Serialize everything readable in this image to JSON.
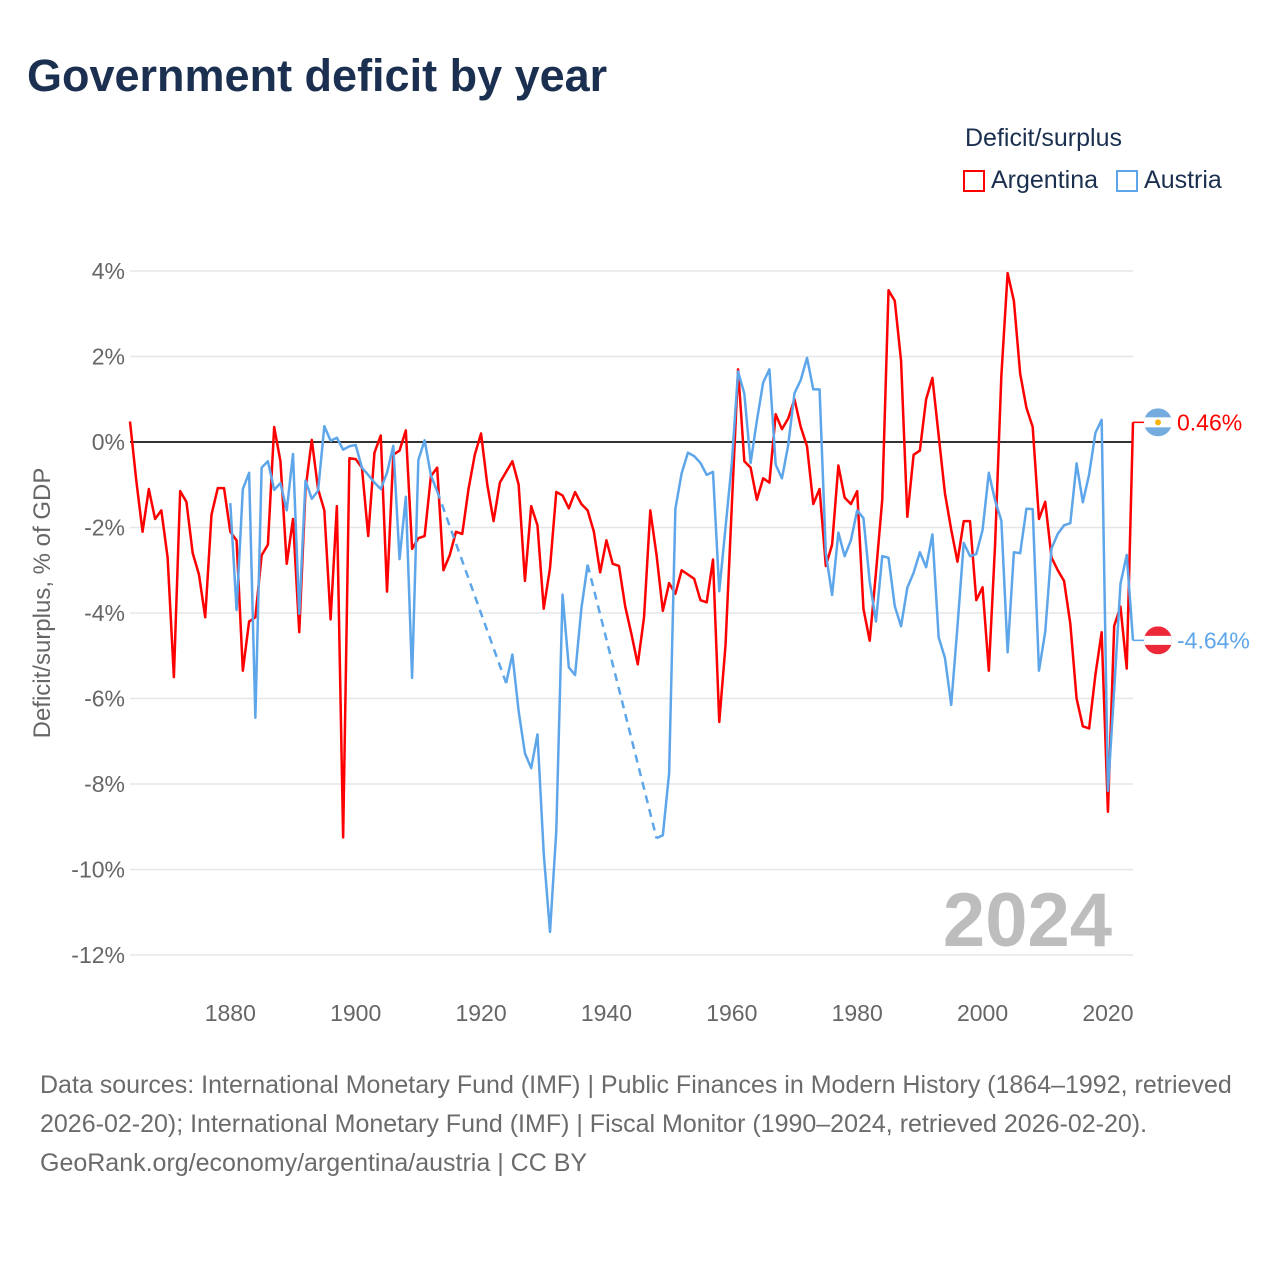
{
  "title": "Government deficit by year",
  "legend": {
    "title": "Deficit/surplus",
    "items": [
      {
        "label": "Argentina",
        "color": "#ff0000"
      },
      {
        "label": "Austria",
        "color": "#5ea6ea"
      }
    ]
  },
  "footer": {
    "sources": "Data sources: International Monetary Fund (IMF) | Public Finances in Modern History (1864–1992, retrieved 2026-02-20); International Monetary Fund (IMF) | Fiscal Monitor (1990–2024, retrieved 2026-02-20).",
    "link": "GeoRank.org/economy/argentina/austria | CC BY"
  },
  "chart_data": {
    "type": "line",
    "title": "Government deficit by year",
    "xlabel": "",
    "ylabel": "Deficit/surplus, % of GDP",
    "xlim": [
      1864,
      2024
    ],
    "ylim": [
      -12,
      4
    ],
    "yticks": [
      4,
      2,
      0,
      -2,
      -4,
      -6,
      -8,
      -10,
      -12
    ],
    "ytick_labels": [
      "4%",
      "2%",
      "0%",
      "-2%",
      "-4%",
      "-6%",
      "-8%",
      "-10%",
      "-12%"
    ],
    "xticks": [
      1880,
      1900,
      1920,
      1940,
      1960,
      1980,
      2000,
      2020
    ],
    "xtick_labels": [
      "1880",
      "1900",
      "1920",
      "1940",
      "1960",
      "1980",
      "2000",
      "2020"
    ],
    "grid": true,
    "legend_position": "top-right",
    "year_watermark": "2024",
    "series": [
      {
        "name": "Argentina",
        "start_year": 1864,
        "end_label": "0.46%",
        "flag": "argentina-flag",
        "values": [
          0.48,
          -0.9,
          -2.1,
          -1.1,
          -1.8,
          -1.6,
          -2.7,
          -5.5,
          -1.15,
          -1.4,
          -2.6,
          -3.1,
          -4.1,
          -1.7,
          -1.08,
          -1.08,
          -2.1,
          -2.3,
          -5.35,
          -4.2,
          -4.1,
          -2.65,
          -2.4,
          0.35,
          -0.45,
          -2.85,
          -1.8,
          -4.45,
          -1.1,
          0.05,
          -1.1,
          -1.6,
          -4.15,
          -1.5,
          -9.25,
          -0.38,
          -0.4,
          -0.6,
          -2.2,
          -0.25,
          0.15,
          -3.5,
          -0.3,
          -0.2,
          0.27,
          -2.5,
          -2.25,
          -2.2,
          -0.8,
          -0.6,
          -3.0,
          -2.65,
          -2.1,
          -2.15,
          -1.1,
          -0.3,
          0.2,
          -1.0,
          -1.85,
          -0.95,
          -0.7,
          -0.45,
          -1.0,
          -3.25,
          -1.5,
          -1.95,
          -3.9,
          -2.95,
          -1.17,
          -1.25,
          -1.55,
          -1.17,
          -1.45,
          -1.6,
          -2.1,
          -3.05,
          -2.3,
          -2.85,
          -2.9,
          -3.85,
          -4.5,
          -5.2,
          -4.1,
          -1.6,
          -2.65,
          -3.95,
          -3.3,
          -3.55,
          -3.0,
          -3.1,
          -3.2,
          -3.7,
          -3.75,
          -2.75,
          -6.55,
          -4.75,
          -1.5,
          1.7,
          -0.45,
          -0.6,
          -1.35,
          -0.85,
          -0.95,
          0.65,
          0.3,
          0.55,
          1.0,
          0.35,
          -0.1,
          -1.45,
          -1.1,
          -2.9,
          -2.4,
          -0.55,
          -1.3,
          -1.45,
          -1.15,
          -3.9,
          -4.65,
          -3.05,
          -1.35,
          3.55,
          3.3,
          1.9,
          -1.75,
          -0.3,
          -0.2,
          1.0,
          1.5,
          0.15,
          -1.2,
          -2.05,
          -2.8,
          -1.85,
          -1.85,
          -3.7,
          -3.4,
          -5.35,
          -2.4,
          1.55,
          3.95,
          3.3,
          1.6,
          0.8,
          0.35,
          -1.8,
          -1.4,
          -2.7,
          -3.0,
          -3.25,
          -4.25,
          -6.0,
          -6.65,
          -6.7,
          -5.45,
          -4.45,
          -8.65,
          -4.3,
          -3.85,
          -5.3,
          0.46
        ]
      },
      {
        "name": "Austria",
        "start_year": 1880,
        "end_label": "-4.64%",
        "flag": "austria-flag",
        "values": [
          -1.43,
          -3.93,
          -1.1,
          -0.72,
          -6.45,
          -0.6,
          -0.45,
          -1.12,
          -0.96,
          -1.6,
          -0.28,
          -4.02,
          -0.9,
          -1.33,
          -1.14,
          0.37,
          0.03,
          0.1,
          -0.18,
          -0.1,
          -0.07,
          -0.6,
          -0.77,
          -0.95,
          -1.1,
          -0.72,
          -0.09,
          -2.74,
          -1.28,
          -5.52,
          -0.42,
          0.04,
          -0.78,
          -1.15,
          null,
          null,
          null,
          null,
          null,
          null,
          null,
          null,
          null,
          null,
          -5.64,
          -4.97,
          -6.3,
          -7.28,
          -7.63,
          -6.84,
          -9.63,
          -11.46,
          -9.1,
          -3.57,
          -5.27,
          -5.45,
          -3.9,
          -2.87,
          null,
          null,
          null,
          null,
          null,
          null,
          null,
          null,
          null,
          null,
          -9.27,
          -9.2,
          -7.75,
          -1.56,
          -0.73,
          -0.25,
          -0.33,
          -0.49,
          -0.77,
          -0.7,
          -3.49,
          -2.0,
          -0.49,
          1.65,
          1.13,
          -0.49,
          0.5,
          1.39,
          1.7,
          -0.53,
          -0.85,
          -0.07,
          1.14,
          1.45,
          1.97,
          1.23,
          1.23,
          -2.6,
          -3.58,
          -2.12,
          -2.67,
          -2.3,
          -1.6,
          -1.78,
          -3.27,
          -4.2,
          -2.67,
          -2.71,
          -3.84,
          -4.31,
          -3.41,
          -3.06,
          -2.58,
          -2.93,
          -2.16,
          -4.57,
          -5.05,
          -6.15,
          -4.31,
          -2.36,
          -2.67,
          -2.62,
          -2.06,
          -0.72,
          -1.37,
          -1.84,
          -4.92,
          -2.58,
          -2.6,
          -1.56,
          -1.57,
          -5.35,
          -4.44,
          -2.49,
          -2.15,
          -1.95,
          -1.9,
          -0.5,
          -1.41,
          -0.76,
          0.21,
          0.52,
          -8.16,
          -5.8,
          -3.32,
          -2.64,
          -4.64
        ]
      }
    ]
  }
}
